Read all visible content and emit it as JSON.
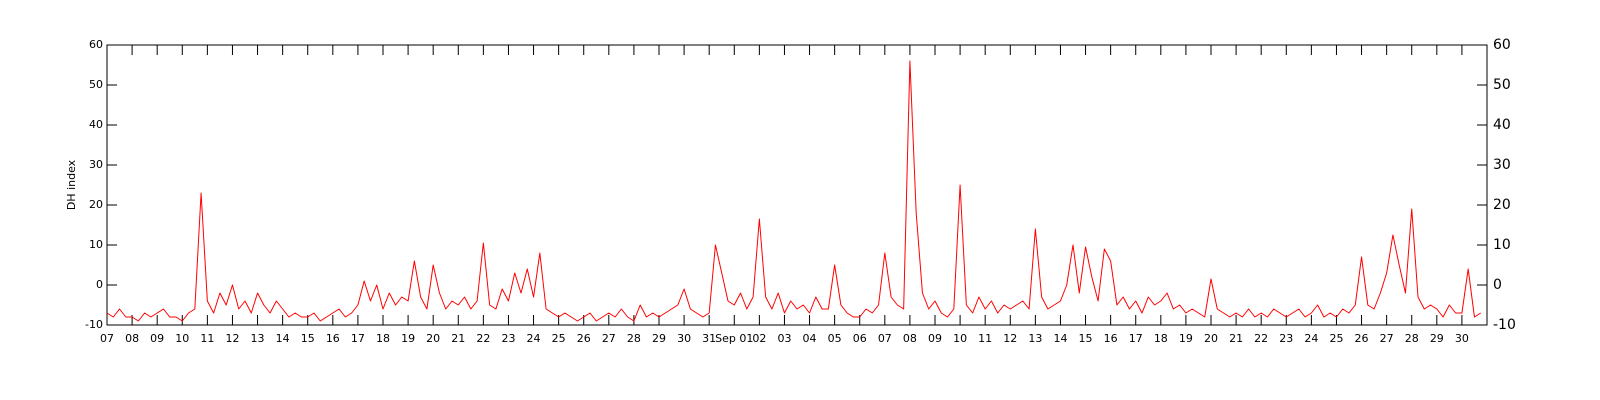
{
  "chart_data": {
    "type": "line",
    "y_label": "DH index",
    "color": "#ff0000",
    "x": [
      0,
      0.25,
      0.5,
      0.75,
      1,
      1.25,
      1.5,
      1.75,
      2,
      2.25,
      2.5,
      2.75,
      3,
      3.25,
      3.5,
      3.75,
      4,
      4.25,
      4.5,
      4.75,
      5,
      5.25,
      5.5,
      5.75,
      6,
      6.25,
      6.5,
      6.75,
      7,
      7.25,
      7.5,
      7.75,
      8,
      8.25,
      8.5,
      8.75,
      9,
      9.25,
      9.5,
      9.75,
      10,
      10.25,
      10.5,
      10.75,
      11,
      11.25,
      11.5,
      11.75,
      12,
      12.25,
      12.5,
      12.75,
      13,
      13.25,
      13.5,
      13.75,
      14,
      14.25,
      14.5,
      14.75,
      15,
      15.25,
      15.5,
      15.75,
      16,
      16.25,
      16.5,
      16.75,
      17,
      17.25,
      17.5,
      17.75,
      18,
      18.25,
      18.5,
      18.75,
      19,
      19.25,
      19.5,
      19.75,
      20,
      20.25,
      20.5,
      20.75,
      21,
      21.25,
      21.5,
      21.75,
      22,
      22.25,
      22.5,
      22.75,
      23,
      23.25,
      23.5,
      23.75,
      24,
      24.25,
      24.5,
      24.75,
      25,
      25.25,
      25.5,
      25.75,
      26,
      26.25,
      26.5,
      26.75,
      27,
      27.25,
      27.5,
      27.75,
      28,
      28.25,
      28.5,
      28.75,
      29,
      29.25,
      29.5,
      29.75,
      30,
      30.25,
      30.5,
      30.75,
      31,
      31.25,
      31.5,
      31.75,
      32,
      32.25,
      32.5,
      32.75,
      33,
      33.25,
      33.5,
      33.75,
      34,
      34.25,
      34.5,
      34.75,
      35,
      35.25,
      35.5,
      35.75,
      36,
      36.25,
      36.5,
      36.75,
      37,
      37.25,
      37.5,
      37.75,
      38,
      38.25,
      38.5,
      38.75,
      39,
      39.25,
      39.5,
      39.75,
      40,
      40.25,
      40.5,
      40.75,
      41,
      41.25,
      41.5,
      41.75,
      42,
      42.25,
      42.5,
      42.75,
      43,
      43.25,
      43.5,
      43.75,
      44,
      44.25,
      44.5,
      44.75,
      45,
      45.25,
      45.5,
      45.75,
      46,
      46.25,
      46.5,
      46.75,
      47,
      47.25,
      47.5,
      47.75,
      48,
      48.25,
      48.5,
      48.75,
      49,
      49.25,
      49.5,
      49.75,
      50,
      50.25,
      50.5,
      50.75,
      51,
      51.25,
      51.5,
      51.75,
      52,
      52.25,
      52.5,
      52.75,
      53,
      53.25,
      53.5,
      53.75,
      54,
      54.25,
      54.5,
      54.75
    ],
    "values": [
      -7,
      -8,
      -6,
      -8,
      -8,
      -9,
      -7,
      -8,
      -7,
      -6,
      -8,
      -8,
      -9,
      -7,
      -6,
      23,
      -4,
      -7,
      -2,
      -5,
      0,
      -6,
      -4,
      -7,
      -2,
      -5,
      -7,
      -4,
      -6,
      -8,
      -7,
      -8,
      -8,
      -7,
      -9,
      -8,
      -7,
      -6,
      -8,
      -7,
      -5,
      1,
      -4,
      0,
      -6,
      -2,
      -5,
      -3,
      -4,
      6,
      -3,
      -6,
      5,
      -2,
      -6,
      -4,
      -5,
      -3,
      -6,
      -4,
      10.5,
      -5,
      -6,
      -1,
      -4,
      3,
      -2,
      4,
      -3,
      8,
      -6,
      -7,
      -8,
      -7,
      -8,
      -9,
      -8,
      -7,
      -9,
      -8,
      -7,
      -8,
      -6,
      -8,
      -9,
      -5,
      -8,
      -7,
      -8,
      -7,
      -6,
      -5,
      -1,
      -6,
      -7,
      -8,
      -7,
      10,
      3,
      -4,
      -5,
      -2,
      -6,
      -3,
      16.5,
      -3,
      -6,
      -2,
      -7,
      -4,
      -6,
      -5,
      -7,
      -3,
      -6,
      -6,
      5,
      -5,
      -7,
      -8,
      -8,
      -6,
      -7,
      -5,
      8,
      -3,
      -5,
      -6,
      56,
      18,
      -2,
      -6,
      -4,
      -7,
      -8,
      -6,
      25,
      -5,
      -7,
      -3,
      -6,
      -4,
      -7,
      -5,
      -6,
      -5,
      -4,
      -6,
      14,
      -3,
      -6,
      -5,
      -4,
      0,
      10,
      -2,
      9.5,
      2,
      -4,
      9,
      6,
      -5,
      -3,
      -6,
      -4,
      -7,
      -3,
      -5,
      -4,
      -2,
      -6,
      -5,
      -7,
      -6,
      -7,
      -8,
      1.5,
      -6,
      -7,
      -8,
      -7,
      -8,
      -6,
      -8,
      -7,
      -8,
      -6,
      -7,
      -8,
      -7,
      -6,
      -8,
      -7,
      -5,
      -8,
      -7,
      -8,
      -6,
      -7,
      -5,
      7,
      -5,
      -6,
      -2,
      3,
      12.5,
      5,
      -2,
      19,
      -3,
      -6,
      -5,
      -6,
      -8,
      -5,
      -7,
      -7,
      4,
      -8,
      -7
    ],
    "xlim": [
      0,
      55
    ],
    "xticks": [
      {
        "value": 0,
        "label": "07"
      },
      {
        "value": 1,
        "label": "08"
      },
      {
        "value": 2,
        "label": "09"
      },
      {
        "value": 3,
        "label": "10"
      },
      {
        "value": 4,
        "label": "11"
      },
      {
        "value": 5,
        "label": "12"
      },
      {
        "value": 6,
        "label": "13"
      },
      {
        "value": 7,
        "label": "14"
      },
      {
        "value": 8,
        "label": "15"
      },
      {
        "value": 9,
        "label": "16"
      },
      {
        "value": 10,
        "label": "17"
      },
      {
        "value": 11,
        "label": "18"
      },
      {
        "value": 12,
        "label": "19"
      },
      {
        "value": 13,
        "label": "20"
      },
      {
        "value": 14,
        "label": "21"
      },
      {
        "value": 15,
        "label": "22"
      },
      {
        "value": 16,
        "label": "23"
      },
      {
        "value": 17,
        "label": "24"
      },
      {
        "value": 18,
        "label": "25"
      },
      {
        "value": 19,
        "label": "26"
      },
      {
        "value": 20,
        "label": "27"
      },
      {
        "value": 21,
        "label": "28"
      },
      {
        "value": 22,
        "label": "29"
      },
      {
        "value": 23,
        "label": "30"
      },
      {
        "value": 24,
        "label": "31"
      },
      {
        "value": 25,
        "label": "Sep 01"
      },
      {
        "value": 26,
        "label": "02"
      },
      {
        "value": 27,
        "label": "03"
      },
      {
        "value": 28,
        "label": "04"
      },
      {
        "value": 29,
        "label": "05"
      },
      {
        "value": 30,
        "label": "06"
      },
      {
        "value": 31,
        "label": "07"
      },
      {
        "value": 32,
        "label": "08"
      },
      {
        "value": 33,
        "label": "09"
      },
      {
        "value": 34,
        "label": "10"
      },
      {
        "value": 35,
        "label": "11"
      },
      {
        "value": 36,
        "label": "12"
      },
      {
        "value": 37,
        "label": "13"
      },
      {
        "value": 38,
        "label": "14"
      },
      {
        "value": 39,
        "label": "15"
      },
      {
        "value": 40,
        "label": "16"
      },
      {
        "value": 41,
        "label": "17"
      },
      {
        "value": 42,
        "label": "18"
      },
      {
        "value": 43,
        "label": "19"
      },
      {
        "value": 44,
        "label": "20"
      },
      {
        "value": 45,
        "label": "21"
      },
      {
        "value": 46,
        "label": "22"
      },
      {
        "value": 47,
        "label": "23"
      },
      {
        "value": 48,
        "label": "24"
      },
      {
        "value": 49,
        "label": "25"
      },
      {
        "value": 50,
        "label": "26"
      },
      {
        "value": 51,
        "label": "27"
      },
      {
        "value": 52,
        "label": "28"
      },
      {
        "value": 53,
        "label": "29"
      },
      {
        "value": 54,
        "label": "30"
      }
    ],
    "ylim": [
      -10,
      60
    ],
    "yticks": [
      -10,
      0,
      10,
      20,
      30,
      40,
      50,
      60
    ]
  }
}
